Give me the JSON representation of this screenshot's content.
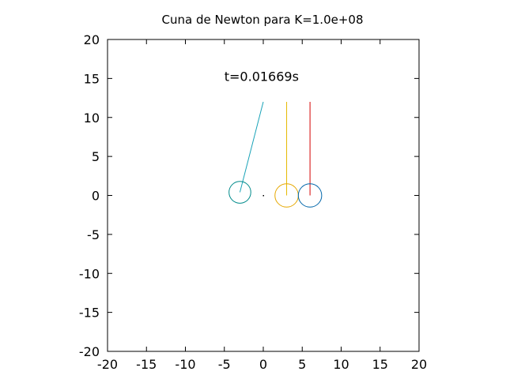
{
  "chart_data": {
    "type": "scatter",
    "title": "Cuna de Newton para K=1.0e+08",
    "annotation": {
      "text": "t=0.01669s",
      "x": -5,
      "y": 15.5
    },
    "xlim": [
      -20,
      20
    ],
    "ylim": [
      -20,
      20
    ],
    "x_ticks": [
      -20,
      -15,
      -10,
      -5,
      0,
      5,
      10,
      15,
      20
    ],
    "y_ticks": [
      -20,
      -15,
      -10,
      -5,
      0,
      5,
      10,
      15,
      20
    ],
    "x_tick_labels": [
      "-20",
      "-15",
      "-10",
      "-5",
      "0",
      "5",
      "10",
      "15",
      "20"
    ],
    "y_tick_labels": [
      "-20",
      "-15",
      "-10",
      "-5",
      "0",
      "5",
      "10",
      "15",
      "20"
    ],
    "grid": false,
    "pendulums": [
      {
        "pivot": [
          0,
          12
        ],
        "bob": [
          -3,
          0.4
        ],
        "radius": 1.4,
        "string_color": "#1aa3b8",
        "bob_color": "#008b8b"
      },
      {
        "pivot": [
          3,
          12
        ],
        "bob": [
          3,
          0
        ],
        "radius": 1.5,
        "string_color": "#e6b800",
        "bob_color": "#e6a800"
      },
      {
        "pivot": [
          6,
          12
        ],
        "bob": [
          6,
          0
        ],
        "radius": 1.5,
        "string_color": "#d40000",
        "bob_color": "#0066aa"
      }
    ],
    "markers": [
      {
        "x": 0,
        "y": 0,
        "color": "#000000"
      }
    ]
  }
}
